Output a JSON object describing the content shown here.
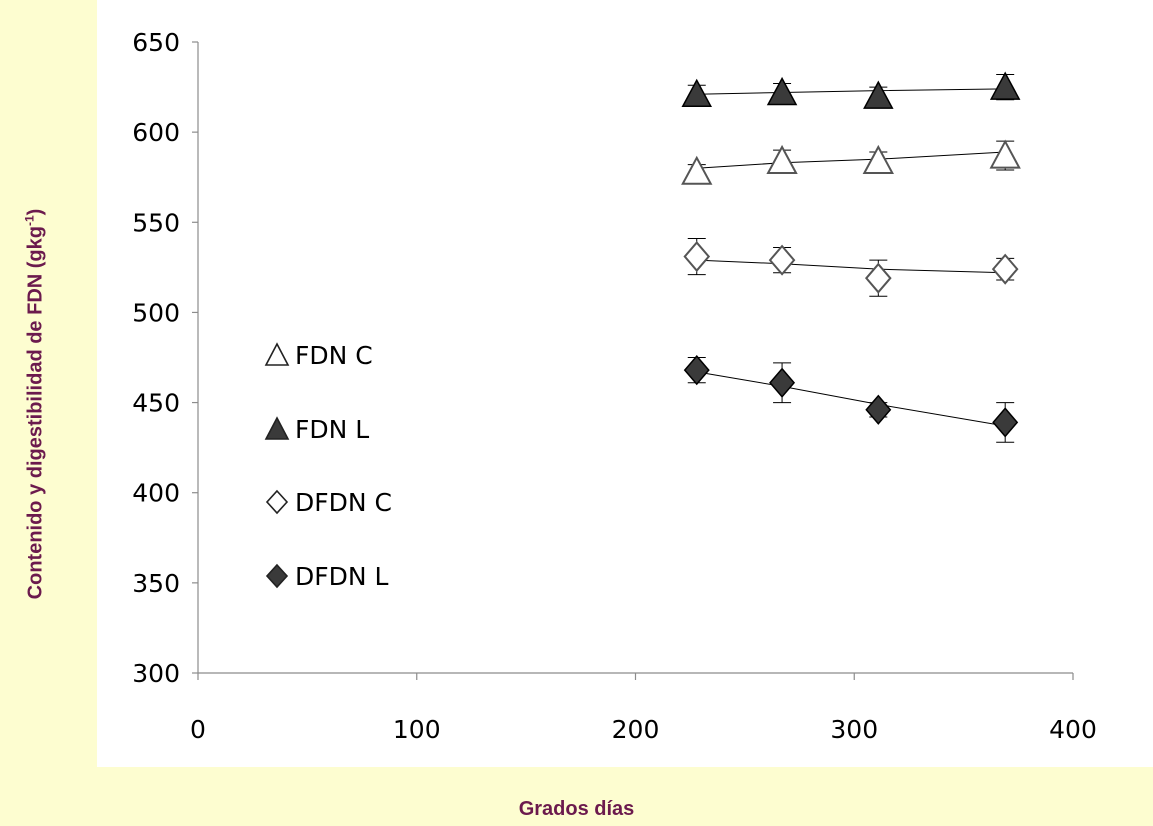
{
  "chart_data": {
    "type": "scatter",
    "xlabel": "Grados días",
    "ylabel": "Contenido y digestibilidad de FDN (gkg",
    "ylabel_sup": "-1",
    "ylabel_close": ")",
    "xlim": [
      0,
      400
    ],
    "ylim": [
      300,
      650
    ],
    "xticks": [
      0,
      100,
      200,
      300,
      400
    ],
    "yticks": [
      300,
      350,
      400,
      450,
      500,
      550,
      600,
      650
    ],
    "grid": false,
    "legend_position": "left",
    "series": [
      {
        "name": "FDN C",
        "marker": "triangle-open",
        "x": [
          228,
          267,
          311,
          369
        ],
        "y": [
          578,
          584,
          584,
          587
        ],
        "err": [
          4,
          6,
          5,
          8
        ],
        "trend": [
          580,
          583,
          585,
          589
        ]
      },
      {
        "name": "FDN L",
        "marker": "triangle-filled",
        "x": [
          228,
          267,
          311,
          369
        ],
        "y": [
          621,
          622,
          620,
          625
        ],
        "err": [
          5,
          5,
          5,
          7
        ],
        "trend": [
          621,
          622,
          623,
          624
        ]
      },
      {
        "name": "DFDN C",
        "marker": "diamond-open",
        "x": [
          228,
          267,
          311,
          369
        ],
        "y": [
          531,
          529,
          519,
          524
        ],
        "err": [
          10,
          7,
          10,
          6
        ],
        "trend": [
          529,
          527,
          524,
          522
        ]
      },
      {
        "name": "DFDN L",
        "marker": "diamond-filled",
        "x": [
          228,
          267,
          311,
          369
        ],
        "y": [
          468,
          461,
          446,
          439
        ],
        "err": [
          7,
          11,
          4,
          11
        ],
        "trend": [
          467,
          459,
          449,
          437
        ]
      }
    ],
    "colors": {
      "filled": "#3a3a3a",
      "open": "#ffffff",
      "stroke": "#000000",
      "axis": "#8c8c8c",
      "label": "#6b1a4d"
    }
  }
}
